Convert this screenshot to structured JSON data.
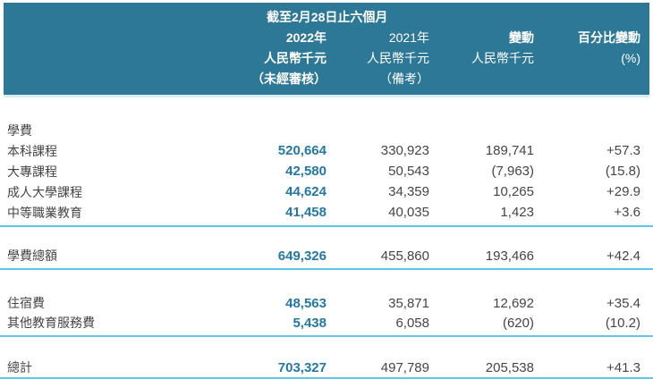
{
  "title": "截至2月28日止六個月",
  "columns": {
    "c2022": {
      "year": "2022年",
      "unit": "人民幣千元",
      "note": "（未經審核）"
    },
    "c2021": {
      "year": "2021年",
      "unit": "人民幣千元",
      "note": "（備考）"
    },
    "change": {
      "year": "變動",
      "unit": "人民幣千元",
      "note": ""
    },
    "pct": {
      "year": "百分比變動",
      "unit": "(%)",
      "note": ""
    }
  },
  "rows": [
    {
      "label": "學費",
      "v2022": "",
      "v2021": "",
      "change": "",
      "pct": ""
    },
    {
      "label": "本科課程",
      "v2022": "520,664",
      "v2021": "330,923",
      "change": "189,741",
      "pct": "+57.3"
    },
    {
      "label": "大專課程",
      "v2022": "42,580",
      "v2021": "50,543",
      "change": "(7,963)",
      "pct": "(15.8)"
    },
    {
      "label": "成人大學課程",
      "v2022": "44,624",
      "v2021": "34,359",
      "change": "10,265",
      "pct": "+29.9"
    },
    {
      "label": "中等職業教育",
      "v2022": "41,458",
      "v2021": "40,035",
      "change": "1,423",
      "pct": "+3.6"
    },
    {
      "label": "學費總額",
      "v2022": "649,326",
      "v2021": "455,860",
      "change": "193,466",
      "pct": "+42.4"
    },
    {
      "label": "住宿費",
      "v2022": "48,563",
      "v2021": "35,871",
      "change": "12,692",
      "pct": "+35.4"
    },
    {
      "label": "其他教育服務費",
      "v2022": "5,438",
      "v2021": "6,058",
      "change": "(620)",
      "pct": "(10.2)"
    },
    {
      "label": "總計",
      "v2022": "703,327",
      "v2021": "497,789",
      "change": "205,538",
      "pct": "+41.3"
    }
  ],
  "colors": {
    "teal": "#2e7897",
    "accent": "#2279a8",
    "rule": "#5fc8e8",
    "rule-faint": "#d9edf6",
    "text": "#454547"
  }
}
